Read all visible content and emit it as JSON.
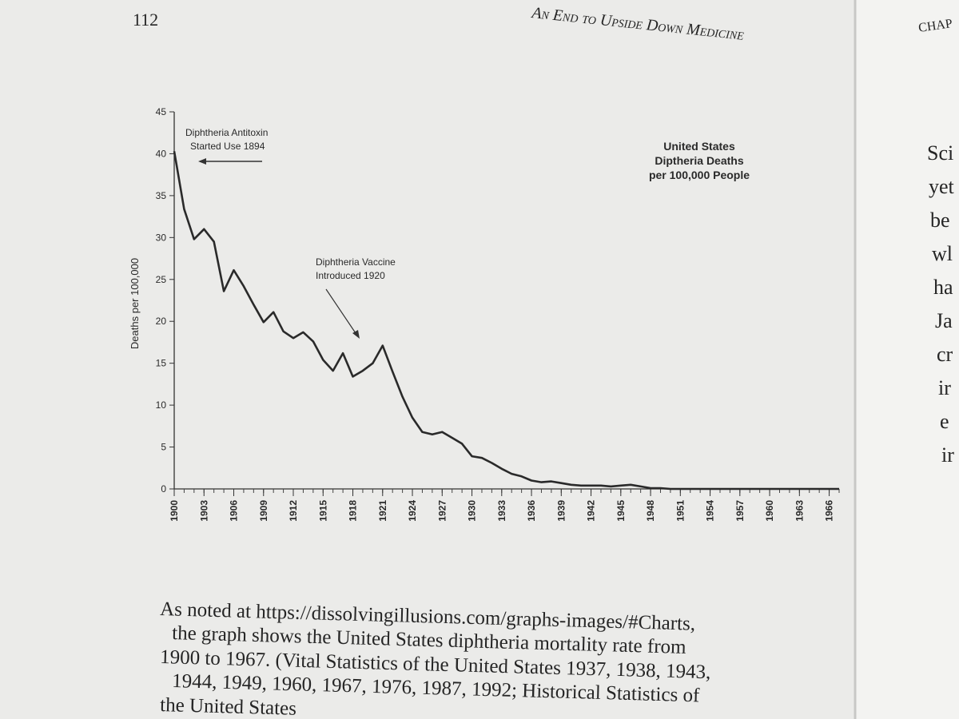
{
  "header": {
    "page_number": "112",
    "running_title": "An End to Upside Down Medicine",
    "next_page_title": "Chap"
  },
  "chart_data": {
    "type": "line",
    "ylabel": "Deaths per 100,000",
    "title": "United States Diptheria Deaths per 100,000 People",
    "annotations": [
      "Diphtheria Antitoxin Started Use 1894",
      "Diphtheria Vaccine Introduced 1920"
    ],
    "x": [
      1900,
      1901,
      1902,
      1903,
      1904,
      1905,
      1906,
      1907,
      1908,
      1909,
      1910,
      1911,
      1912,
      1913,
      1914,
      1915,
      1916,
      1917,
      1918,
      1919,
      1920,
      1921,
      1922,
      1923,
      1924,
      1925,
      1926,
      1927,
      1928,
      1929,
      1930,
      1931,
      1932,
      1933,
      1934,
      1935,
      1936,
      1937,
      1938,
      1939,
      1940,
      1941,
      1942,
      1943,
      1944,
      1945,
      1946,
      1947,
      1948,
      1949,
      1950,
      1951,
      1952,
      1953,
      1954,
      1955,
      1956,
      1957,
      1958,
      1959,
      1960,
      1961,
      1962,
      1963,
      1964,
      1965,
      1966,
      1967
    ],
    "series": [
      {
        "name": "Diphtheria deaths",
        "color": "#2a2a2a",
        "values": [
          40.3,
          33.4,
          29.8,
          31.0,
          29.5,
          23.6,
          26.1,
          24.2,
          22.0,
          19.9,
          21.1,
          18.8,
          18.0,
          18.7,
          17.6,
          15.4,
          14.1,
          16.2,
          13.4,
          14.1,
          15.0,
          17.1,
          14.0,
          11.0,
          8.5,
          6.8,
          6.5,
          6.8,
          6.1,
          5.4,
          3.9,
          3.7,
          3.1,
          2.4,
          1.8,
          1.5,
          1.0,
          0.8,
          0.9,
          0.7,
          0.5,
          0.4,
          0.4,
          0.4,
          0.3,
          0.4,
          0.5,
          0.3,
          0.1,
          0.1,
          0.0,
          0.0,
          0.0,
          0.0,
          0.0,
          0.0,
          0.0,
          0.0,
          0.0,
          0.0,
          0.0,
          0.0,
          0.0,
          0.0,
          0.0,
          0.0,
          0.0,
          0.0
        ]
      }
    ],
    "xlim": [
      1900,
      1967
    ],
    "ylim": [
      0,
      45
    ],
    "xticks": [
      1900,
      1903,
      1906,
      1909,
      1912,
      1915,
      1918,
      1921,
      1924,
      1927,
      1930,
      1933,
      1936,
      1939,
      1942,
      1945,
      1948,
      1951,
      1954,
      1957,
      1960,
      1963,
      1966
    ],
    "yticks": [
      0,
      5,
      10,
      15,
      20,
      25,
      30,
      35,
      40,
      45
    ]
  },
  "caption": {
    "lines": [
      "As noted at https://dissolvingillusions.com/graphs-images/#Charts,",
      "the graph shows the United States diphtheria mortality rate from",
      "1900 to 1967. (Vital Statistics of the United States 1937, 1938, 1943,",
      "1944, 1949, 1960, 1967, 1976, 1987, 1992; Historical Statistics of",
      "the United States"
    ]
  },
  "facing_page": {
    "fragments": [
      "Sci",
      "yet",
      "be",
      "wl",
      "ha",
      "Ja",
      "cr",
      "ir",
      "e",
      "ir"
    ]
  }
}
